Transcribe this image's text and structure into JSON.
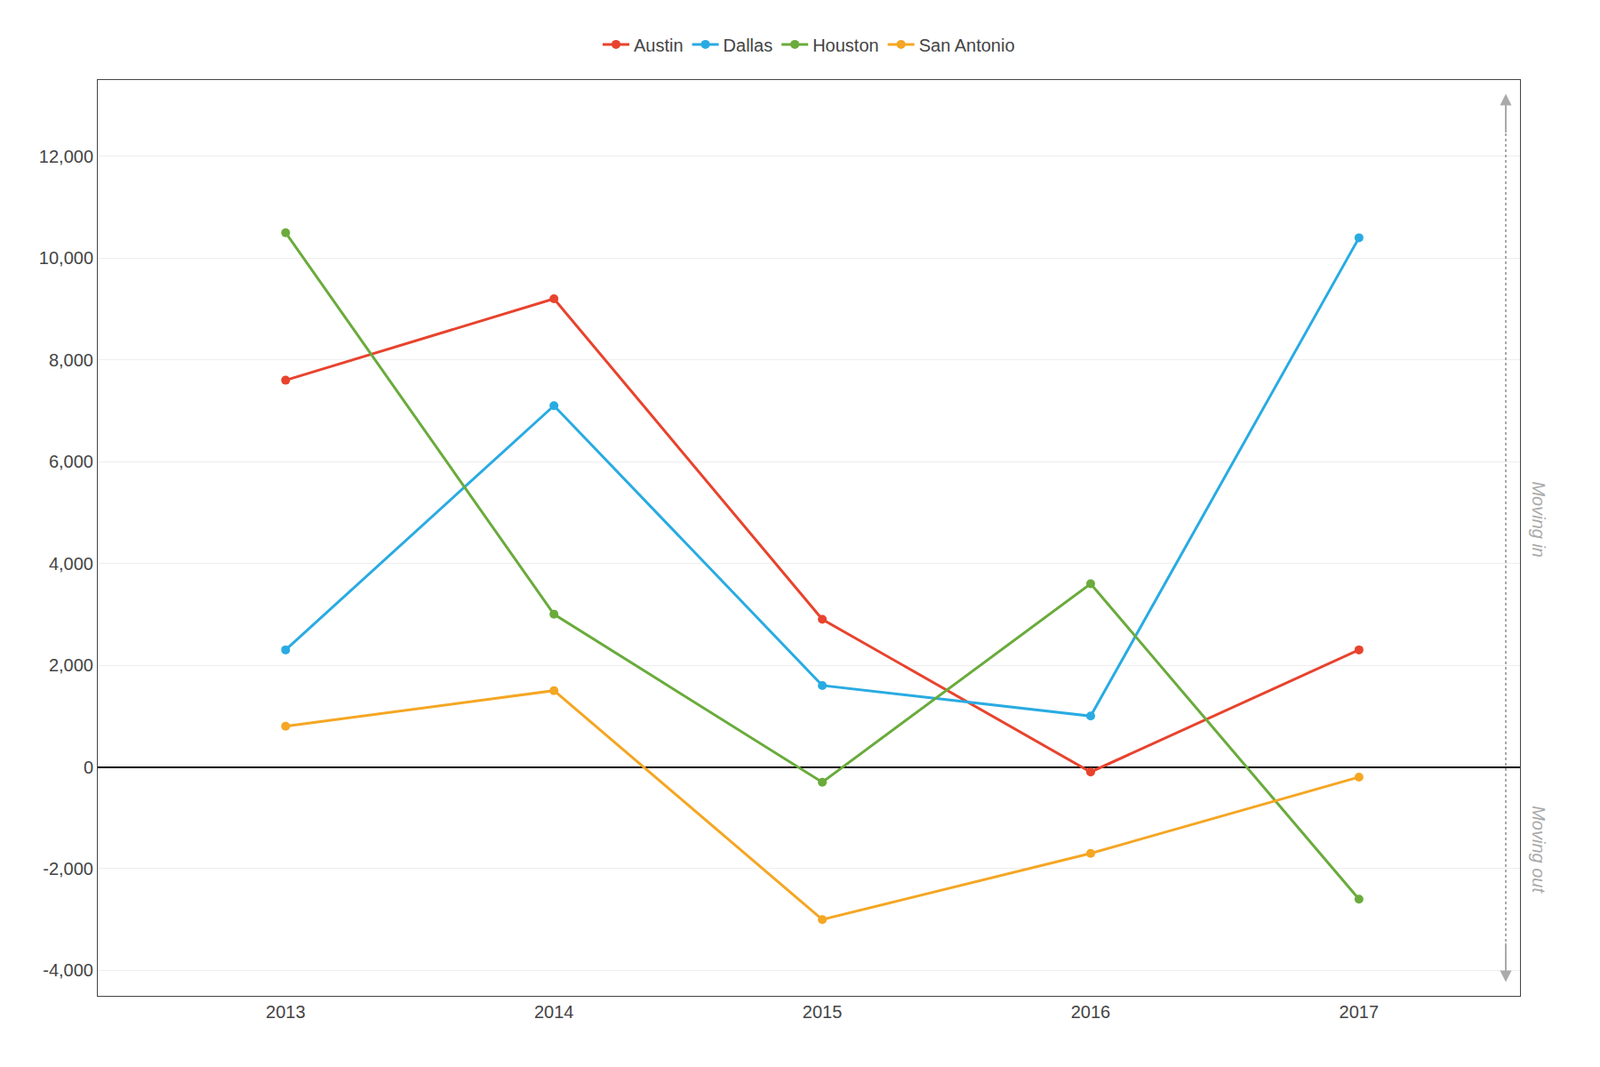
{
  "chart_data": {
    "type": "line",
    "x": [
      2013,
      2014,
      2015,
      2016,
      2017
    ],
    "series": [
      {
        "name": "Austin",
        "color": "#E8432D",
        "values": [
          7600,
          9200,
          2900,
          -100,
          2300
        ]
      },
      {
        "name": "Dallas",
        "color": "#29ABE2",
        "values": [
          2300,
          7100,
          1600,
          1000,
          10400
        ]
      },
      {
        "name": "Houston",
        "color": "#6AAB3C",
        "values": [
          10500,
          3000,
          -300,
          3600,
          -2600
        ]
      },
      {
        "name": "San Antonio",
        "color": "#F5A623",
        "values": [
          800,
          1500,
          -3000,
          -1700,
          -200
        ]
      }
    ],
    "xlim": [
      2012.3,
      2017.6
    ],
    "xticks": [
      2013,
      2014,
      2015,
      2016,
      2017
    ],
    "ylim": [
      -4500,
      13500
    ],
    "yticks": [
      {
        "value": -4000,
        "label": "-4,000"
      },
      {
        "value": -2000,
        "label": "-2,000"
      },
      0,
      {
        "value": 2000,
        "label": "2,000"
      },
      {
        "value": 4000,
        "label": "4,000"
      },
      {
        "value": 6000,
        "label": "6,000"
      },
      {
        "value": 8000,
        "label": "8,000"
      },
      {
        "value": 10000,
        "label": "10,000"
      },
      {
        "value": 12000,
        "label": "12,000"
      }
    ],
    "grid": "y",
    "legend": "top",
    "marker": "circle",
    "annotations": [
      {
        "text": "Moving in"
      },
      {
        "text": "Moving out"
      }
    ]
  }
}
